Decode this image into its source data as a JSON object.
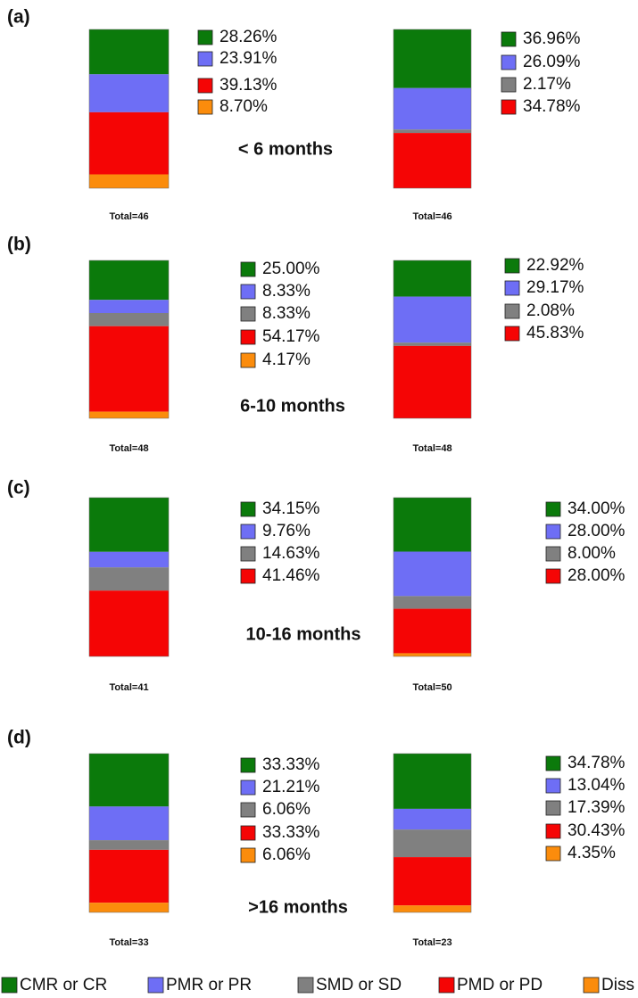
{
  "chart_data": {
    "type": "stacked_bar",
    "ylim": [
      0,
      100
    ],
    "series": [
      {
        "name": "CMR or CR",
        "color": "#0b7a0b"
      },
      {
        "name": "PMR or PR",
        "color": "#6e6ef5"
      },
      {
        "name": "SMD or SD",
        "color": "#808080"
      },
      {
        "name": "PMD or PD",
        "color": "#f50505"
      },
      {
        "name": "Diss",
        "color": "#fb8c0c"
      }
    ],
    "panels": [
      {
        "label": "(a)",
        "period": "< 6 months",
        "bars": [
          {
            "total": "Total=46",
            "values": [
              28.26,
              23.91,
              null,
              39.13,
              8.7
            ],
            "value_labels": [
              "28.26%",
              "23.91%",
              null,
              "39.13%",
              "8.70%"
            ]
          },
          {
            "total": "Total=46",
            "values": [
              36.96,
              26.09,
              2.17,
              34.78,
              null
            ],
            "value_labels": [
              "36.96%",
              "26.09%",
              "2.17%",
              "34.78%",
              null
            ]
          }
        ]
      },
      {
        "label": "(b)",
        "period": "6-10 months",
        "bars": [
          {
            "total": "Total=48",
            "values": [
              25.0,
              8.33,
              8.33,
              54.17,
              4.17
            ],
            "value_labels": [
              "25.00%",
              "8.33%",
              "8.33%",
              "54.17%",
              "4.17%"
            ]
          },
          {
            "total": "Total=48",
            "values": [
              22.92,
              29.17,
              2.08,
              45.83,
              null
            ],
            "value_labels": [
              "22.92%",
              "29.17%",
              "2.08%",
              "45.83%",
              null
            ]
          }
        ]
      },
      {
        "label": "(c)",
        "period": "10-16 months",
        "bars": [
          {
            "total": "Total=41",
            "values": [
              34.15,
              9.76,
              14.63,
              41.46,
              null
            ],
            "value_labels": [
              "34.15%",
              "9.76%",
              "14.63%",
              "41.46%",
              null
            ]
          },
          {
            "total": "Total=50",
            "values": [
              34.0,
              28.0,
              8.0,
              28.0,
              2
            ],
            "value_labels": [
              "34.00%",
              "28.00%",
              "8.00%",
              "28.00%",
              null
            ]
          }
        ]
      },
      {
        "label": "(d)",
        "period": ">16 months",
        "bars": [
          {
            "total": "Total=33",
            "values": [
              33.33,
              21.21,
              6.06,
              33.33,
              6.06
            ],
            "value_labels": [
              "33.33%",
              "21.21%",
              "6.06%",
              "33.33%",
              "6.06%"
            ]
          },
          {
            "total": "Total=23",
            "values": [
              34.78,
              13.04,
              17.39,
              30.43,
              4.35
            ],
            "value_labels": [
              "34.78%",
              "13.04%",
              "17.39%",
              "30.43%",
              "4.35%"
            ]
          }
        ]
      }
    ]
  }
}
